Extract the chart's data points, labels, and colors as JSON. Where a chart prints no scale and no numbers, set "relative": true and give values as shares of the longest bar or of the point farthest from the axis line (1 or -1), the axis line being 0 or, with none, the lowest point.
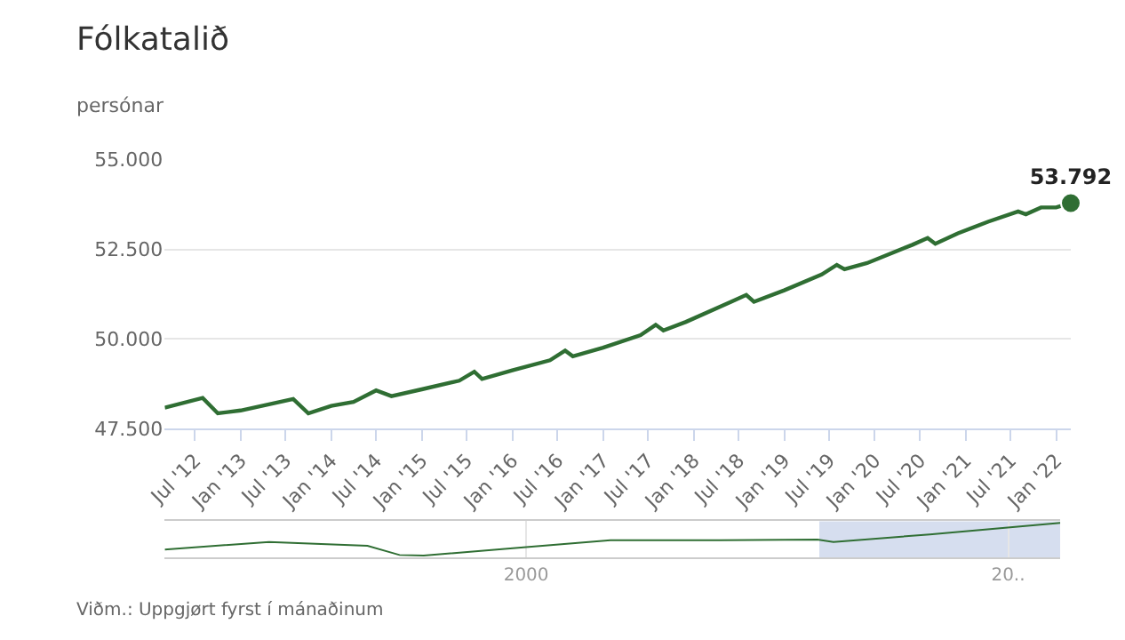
{
  "chart_data": [
    {
      "type": "line",
      "title": "Fólkatalið",
      "ylabel": "persónar",
      "x": [
        "2012-03",
        "2012-08",
        "2012-10",
        "2013-01",
        "2013-08",
        "2013-10",
        "2014-01",
        "2014-04",
        "2014-07",
        "2014-09",
        "2015-01",
        "2015-06",
        "2015-08",
        "2015-09",
        "2016-01",
        "2016-06",
        "2016-08",
        "2016-09",
        "2017-01",
        "2017-06",
        "2017-08",
        "2017-09",
        "2017-12",
        "2018-06",
        "2018-08",
        "2018-09",
        "2019-01",
        "2019-06",
        "2019-08",
        "2019-09",
        "2019-12",
        "2020-06",
        "2020-08",
        "2020-09",
        "2020-12",
        "2021-04",
        "2021-08",
        "2021-09",
        "2021-11",
        "2022-01",
        "2022-03"
      ],
      "series": [
        {
          "color": "#2f6e33",
          "values": [
            48090,
            48360,
            47930,
            48010,
            48330,
            47930,
            48140,
            48250,
            48570,
            48410,
            48600,
            48840,
            49090,
            48890,
            49130,
            49410,
            49680,
            49520,
            49760,
            50110,
            50400,
            50240,
            50480,
            51040,
            51230,
            51040,
            51360,
            51800,
            52070,
            51950,
            52120,
            52630,
            52820,
            52660,
            52950,
            53270,
            53560,
            53480,
            53670,
            53670,
            53792
          ],
          "value_labels": [
            null,
            null,
            null,
            null,
            null,
            null,
            null,
            null,
            null,
            null,
            null,
            null,
            null,
            null,
            null,
            null,
            null,
            null,
            null,
            null,
            null,
            null,
            null,
            null,
            null,
            null,
            null,
            null,
            null,
            null,
            null,
            null,
            null,
            null,
            null,
            null,
            null,
            null,
            null,
            null,
            "53.792"
          ]
        }
      ],
      "xlim": [
        "2012-03",
        "2022-03"
      ],
      "xticks": [
        {
          "value": "2012-07",
          "label": "Jul '12"
        },
        {
          "value": "2013-01",
          "label": "Jan '13"
        },
        {
          "value": "2013-07",
          "label": "Jul '13"
        },
        {
          "value": "2014-01",
          "label": "Jan '14"
        },
        {
          "value": "2014-07",
          "label": "Jul '14"
        },
        {
          "value": "2015-01",
          "label": "Jan '15"
        },
        {
          "value": "2015-07",
          "label": "Jul '15"
        },
        {
          "value": "2016-01",
          "label": "Jan '16"
        },
        {
          "value": "2016-07",
          "label": "Jul '16"
        },
        {
          "value": "2017-01",
          "label": "Jan '17"
        },
        {
          "value": "2017-07",
          "label": "Jul '17"
        },
        {
          "value": "2018-01",
          "label": "Jan '18"
        },
        {
          "value": "2018-07",
          "label": "Jul '18"
        },
        {
          "value": "2019-01",
          "label": "Jan '19"
        },
        {
          "value": "2019-07",
          "label": "Jul '19"
        },
        {
          "value": "2020-01",
          "label": "Jan '20"
        },
        {
          "value": "2020-07",
          "label": "Jul '20"
        },
        {
          "value": "2021-01",
          "label": "Jan '21"
        },
        {
          "value": "2021-07",
          "label": "Jul '21"
        },
        {
          "value": "2022-01",
          "label": "Jan '22"
        }
      ],
      "ylim": [
        47500,
        55000
      ],
      "yticks": [
        {
          "value": 47500,
          "label": "47.500"
        },
        {
          "value": 50000,
          "label": "50.000"
        },
        {
          "value": 52500,
          "label": "52.500"
        },
        {
          "value": 55000,
          "label": "55.000"
        }
      ],
      "grid": "y",
      "annotations": [
        "Viðm.: Uppgjørt fyrst í mánaðinum"
      ]
    },
    {
      "type": "line",
      "relative": true,
      "x": [
        "1985",
        "1989-05",
        "1993-06",
        "1994-10",
        "1995-10",
        "2000-01",
        "2003-07",
        "2008",
        "2012-02",
        "2012-10",
        "2016-10",
        "2022-03"
      ],
      "series": [
        {
          "color": "#2f6e33",
          "values": [
            0.19,
            0.42,
            0.3,
            0.02,
            0,
            0.26,
            0.47,
            0.47,
            0.49,
            0.42,
            0.65,
            1
          ]
        }
      ],
      "xlim": [
        "1985",
        "2022-03"
      ],
      "xticks": [
        {
          "value": "2000",
          "label": "2000"
        },
        {
          "value": "2020",
          "label": "20.."
        }
      ],
      "bands": [
        {
          "axis": "x",
          "from": "2012-03",
          "to": "2022-03",
          "color": "#ccd6eb"
        }
      ],
      "grid": "x"
    }
  ]
}
